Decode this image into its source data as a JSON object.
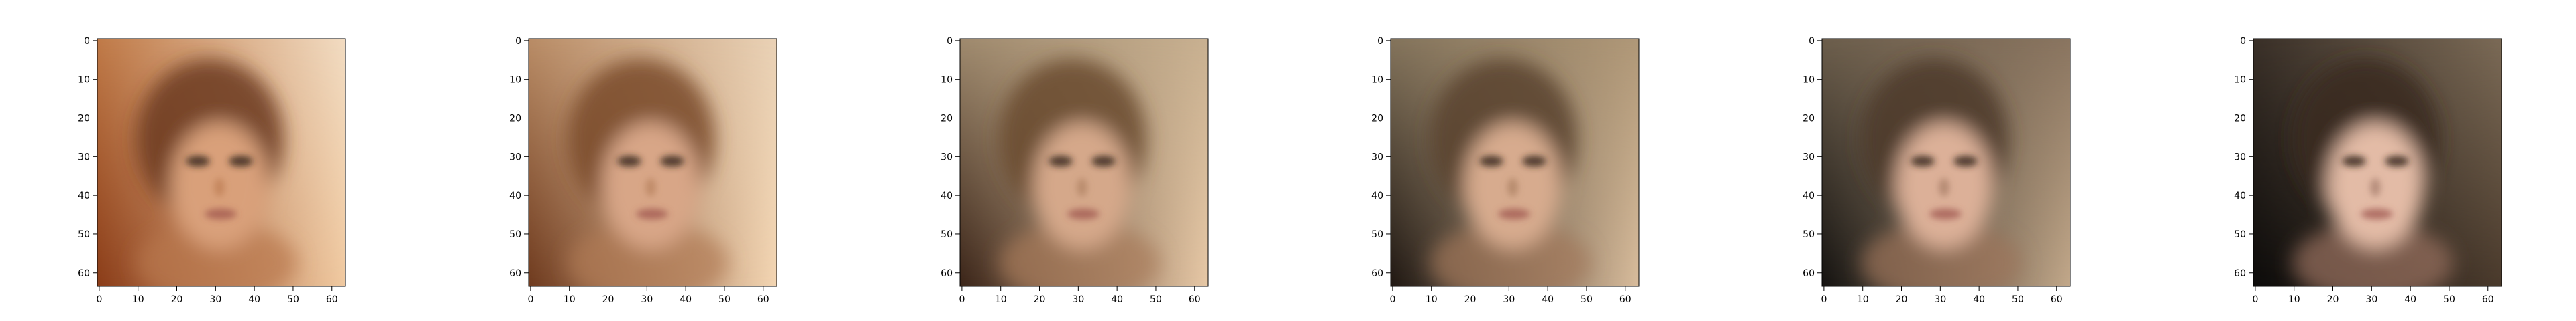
{
  "figure": {
    "panel_count": 6,
    "x_ticks": [
      "0",
      "10",
      "20",
      "30",
      "40",
      "50",
      "60"
    ],
    "y_ticks": [
      "0",
      "10",
      "20",
      "30",
      "40",
      "50",
      "60"
    ],
    "image_extent": [
      -0.5,
      63.5
    ],
    "panels": [
      {
        "background_tl": "#c07a48",
        "background_tr": "#f2dcc2",
        "background_bl": "#8a3c18",
        "background_br": "#f0c9a0",
        "hair": "#6b3a1c",
        "face": "#d9a07a",
        "skin_shadow": "#b8764c"
      },
      {
        "background_tl": "#b98c66",
        "background_tr": "#ead2b6",
        "background_bl": "#6e3a1e",
        "background_br": "#f3d5b2",
        "hair": "#7a4a2a",
        "face": "#d8a687",
        "skin_shadow": "#b07a55"
      },
      {
        "background_tl": "#9f8a6e",
        "background_tr": "#c9b191",
        "background_bl": "#3a2418",
        "background_br": "#e7c8a6",
        "hair": "#6a4a30",
        "face": "#d5a88a",
        "skin_shadow": "#a87a5a"
      },
      {
        "background_tl": "#84745c",
        "background_tr": "#b09878",
        "background_bl": "#1f1712",
        "background_br": "#d8bc9c",
        "hair": "#5a432e",
        "face": "#d7ab8e",
        "skin_shadow": "#a17659"
      },
      {
        "background_tl": "#6c5e4c",
        "background_tr": "#8a7560",
        "background_bl": "#141210",
        "background_br": "#c2a88a",
        "hair": "#4e3a2a",
        "face": "#dcb098",
        "skin_shadow": "#9c735a"
      },
      {
        "background_tl": "#3a3028",
        "background_tr": "#7b6a56",
        "background_bl": "#0c0b0a",
        "background_br": "#4a3a2c",
        "hair": "#3a2c22",
        "face": "#e3bba6",
        "skin_shadow": "#9a7260"
      }
    ]
  }
}
